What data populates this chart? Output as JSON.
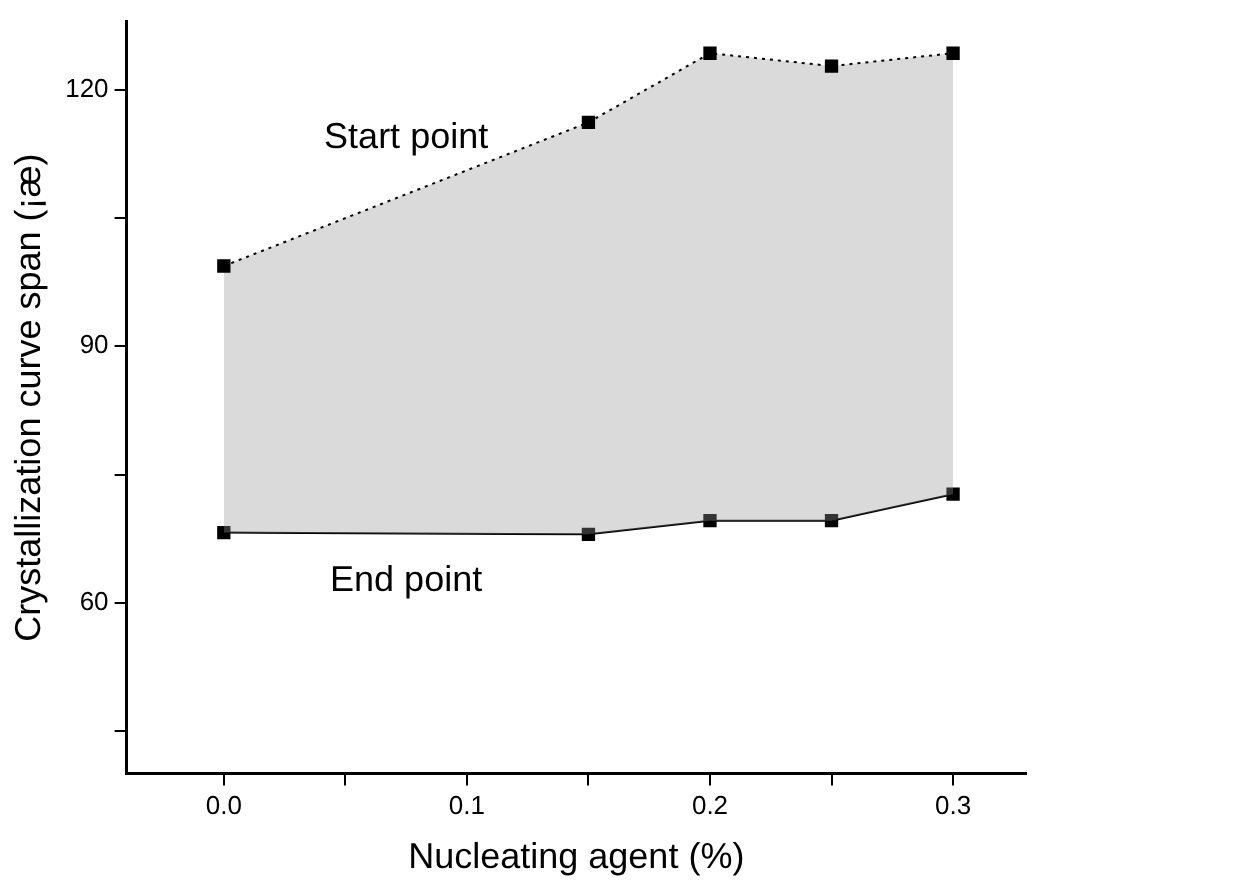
{
  "chart_data": {
    "type": "line",
    "xlabel": "Nucleating agent (%)",
    "ylabel": "Crystallization curve span (¡æ)",
    "x": [
      0,
      0.15,
      0.2,
      0.25,
      0.3
    ],
    "series": [
      {
        "name": "Start point",
        "type": "area",
        "color": "#000000",
        "line_style": "dotted",
        "values": [
          99.4,
          116.2,
          124.3,
          122.8,
          124.3
        ]
      },
      {
        "name": "End point",
        "color": "#000000",
        "line_style": "solid",
        "values": [
          68.2,
          68.0,
          69.6,
          69.6,
          72.7
        ]
      }
    ],
    "xlim": [
      -0.04,
      0.33
    ],
    "xticks": [
      {
        "value": 0,
        "label": "0.0"
      },
      {
        "value": 0.05,
        "label": null
      },
      {
        "value": 0.1,
        "label": "0.1"
      },
      {
        "value": 0.15,
        "label": null
      },
      {
        "value": 0.2,
        "label": "0.2"
      },
      {
        "value": 0.25,
        "label": null
      },
      {
        "value": 0.3,
        "label": "0.3"
      }
    ],
    "ylim": [
      40,
      128
    ],
    "yticks": [
      {
        "value": 45,
        "label": null
      },
      {
        "value": 60,
        "label": "60"
      },
      {
        "value": 75,
        "label": null
      },
      {
        "value": 90,
        "label": "90"
      },
      {
        "value": 105,
        "label": null
      },
      {
        "value": 120,
        "label": "120"
      }
    ],
    "marker": "square",
    "grid": false,
    "legend": false
  }
}
